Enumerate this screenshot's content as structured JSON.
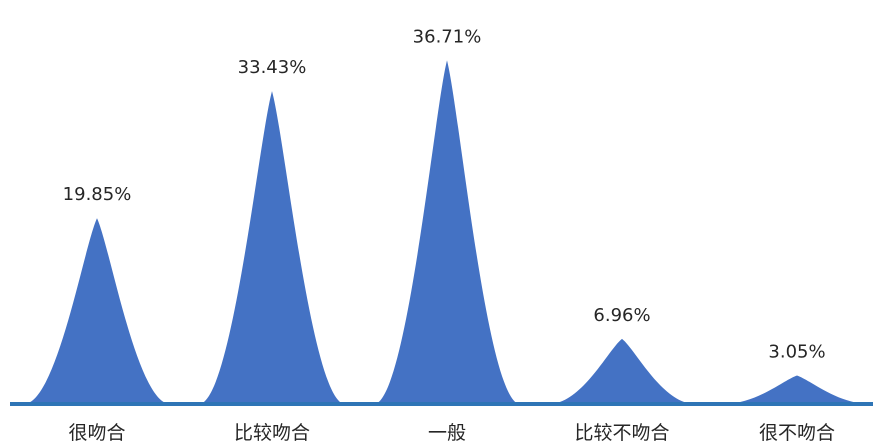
{
  "chart_data": {
    "type": "area",
    "shape": "peak",
    "categories": [
      "很吻合",
      "比较吻合",
      "一般",
      "比较不吻合",
      "很不吻合"
    ],
    "values": [
      19.85,
      33.43,
      36.71,
      6.96,
      3.05
    ],
    "value_labels": [
      "19.85%",
      "33.43%",
      "36.71%",
      "6.96%",
      "3.05%"
    ],
    "unit": "%",
    "ylim": [
      0,
      40
    ],
    "grid": false,
    "legend": "none",
    "colors": {
      "fill": "#4472C4",
      "baseline": "#2E75B6",
      "text": "#262626"
    }
  }
}
